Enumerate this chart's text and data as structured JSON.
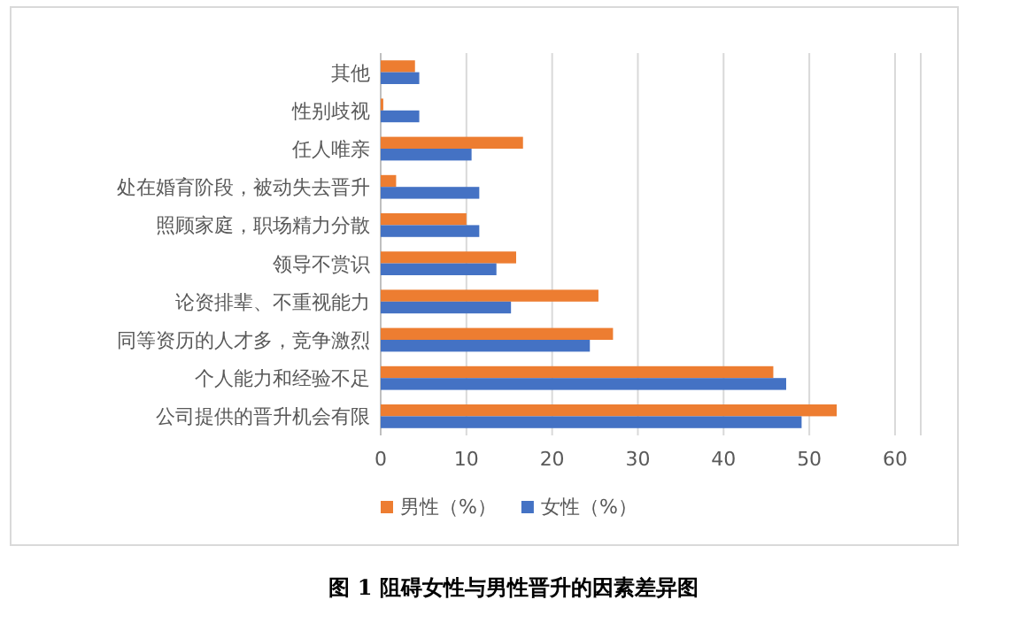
{
  "chart_data": {
    "type": "bar",
    "orientation": "horizontal",
    "title": "图 1 阻碍女性与男性晋升的因素差异图",
    "categories": [
      "其他",
      "性别歧视",
      "任人唯亲",
      "处在婚育阶段，被动失去晋升",
      "照顾家庭，职场精力分散",
      "领导不赏识",
      "论资排辈、不重视能力",
      "同等资历的人才多，竞争激烈",
      "个人能力和经验不足",
      "公司提供的晋升机会有限"
    ],
    "series": [
      {
        "name": "男性（%）",
        "color": "#ed7d31",
        "values": [
          4.0,
          0.3,
          16.6,
          1.8,
          10.0,
          15.8,
          25.4,
          27.1,
          45.8,
          53.2
        ]
      },
      {
        "name": "女性（%）",
        "color": "#4472c4",
        "values": [
          4.5,
          4.5,
          10.6,
          11.5,
          11.5,
          13.5,
          15.2,
          24.4,
          47.3,
          49.1
        ]
      }
    ],
    "xlim": [
      0,
      63
    ],
    "xticks": [
      0,
      10,
      20,
      30,
      40,
      50,
      60
    ],
    "grid": "x",
    "legend": "bottom"
  }
}
